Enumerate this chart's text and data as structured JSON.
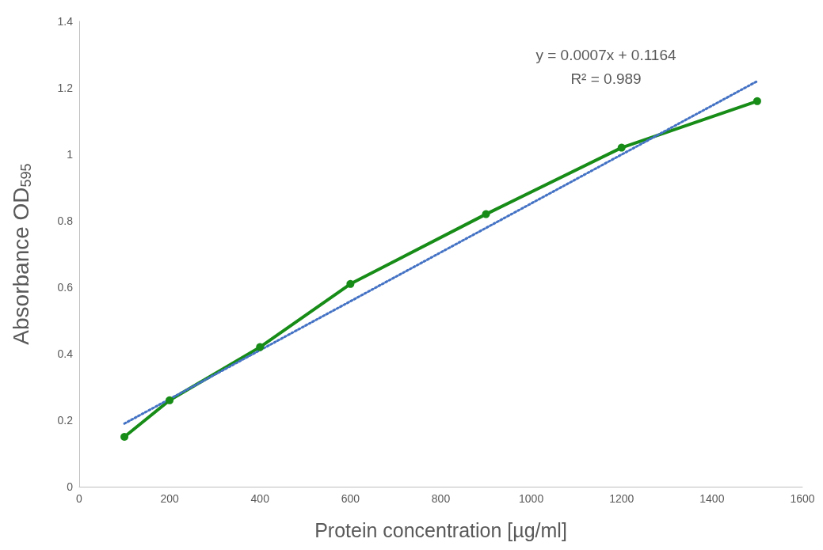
{
  "chart_data": {
    "type": "line",
    "xlabel": "Protein concentration [µg/ml]",
    "ylabel": "Absorbance OD$_{595}$",
    "x": [
      100,
      200,
      400,
      600,
      900,
      1200,
      1500
    ],
    "series": [
      {
        "color": "#178c17",
        "values": [
          0.15,
          0.26,
          0.42,
          0.61,
          0.82,
          1.02,
          1.16
        ],
        "marker": "circle",
        "line_style": "solid"
      },
      {
        "type": "line",
        "x": [
          100,
          1500
        ],
        "color": "#4472c4",
        "values": [
          0.19,
          1.22
        ],
        "marker": "none",
        "line_style": "dotted"
      }
    ],
    "xlim": [
      0,
      1600
    ],
    "xticks": [
      0,
      200,
      400,
      600,
      800,
      1000,
      1200,
      1400,
      1600
    ],
    "ylim": [
      0,
      1.4
    ],
    "yticks": [
      0,
      0.2,
      0.4,
      0.6,
      0.8,
      1,
      1.2,
      1.4
    ],
    "grid": false,
    "annotations": [
      "y = 0.0007x + 0.1164",
      "R² = 0.989"
    ]
  }
}
